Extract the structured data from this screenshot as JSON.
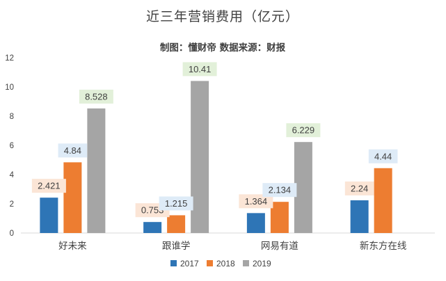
{
  "chart_data": {
    "type": "bar",
    "title": "近三年营销费用（亿元）",
    "subtitle": "制图：懂财帝   数据来源：财报",
    "categories": [
      "好未来",
      "跟谁学",
      "网易有道",
      "新东方在线"
    ],
    "series": [
      {
        "name": "2017",
        "color": "#2e75b6",
        "label_bg": "#deebf7",
        "values": [
          2.421,
          0.753,
          1.364,
          2.24
        ],
        "labels": [
          "2.421",
          "0.753",
          "1.364",
          "2.24"
        ]
      },
      {
        "name": "2018",
        "color": "#ed7d31",
        "label_bg": "#fbe5d6",
        "values": [
          4.84,
          1.215,
          2.134,
          4.44
        ],
        "labels": [
          "4.84",
          "1.215",
          "2.134",
          "4.44"
        ]
      },
      {
        "name": "2019",
        "color": "#a5a5a5",
        "label_bg": "#e2f0d9",
        "values": [
          8.528,
          10.41,
          6.229,
          null
        ],
        "labels": [
          "8.528",
          "10.41",
          "6.229",
          null
        ]
      }
    ],
    "label_bg_by_category": [
      [
        "#fbe5d6",
        "#deebf7",
        "#e2f0d9"
      ],
      [
        "#fbe5d6",
        "#deebf7",
        "#e2f0d9"
      ],
      [
        "#fbe5d6",
        "#deebf7",
        "#e2f0d9"
      ],
      [
        "#fbe5d6",
        "#deebf7",
        null
      ]
    ],
    "yticks": [
      "0",
      "2",
      "4",
      "6",
      "8",
      "10",
      "12"
    ],
    "ylim": [
      0,
      12
    ],
    "grid": false,
    "legend_position": "bottom"
  }
}
